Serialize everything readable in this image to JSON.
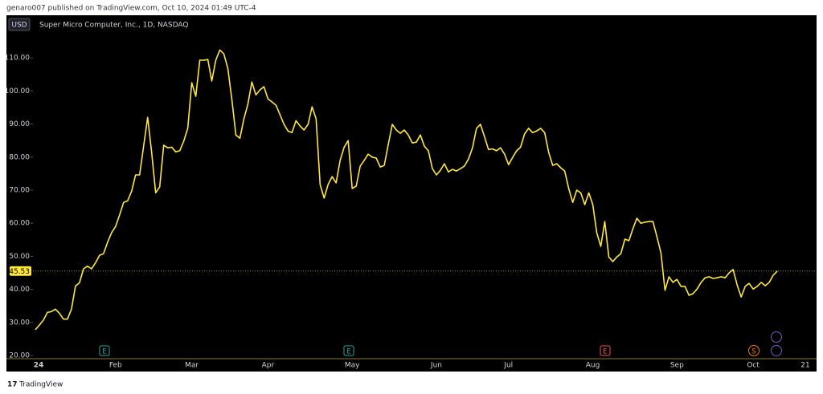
{
  "header": "genaro007 published on TradingView.com, Oct 10, 2024 01:49 UTC-4",
  "footer": "TradingView",
  "chart_data": {
    "type": "line",
    "title": "Super Micro Computer, Inc., 1D, NASDAQ",
    "currency": "USD",
    "markers": [
      "E",
      "E",
      "E",
      "S"
    ],
    "categories": [
      "24",
      null,
      null,
      null,
      null,
      null,
      null,
      null,
      null,
      null,
      null,
      null,
      null,
      null,
      null,
      null,
      null,
      null,
      null,
      null,
      "Feb",
      null,
      null,
      null,
      null,
      null,
      null,
      null,
      null,
      null,
      null,
      null,
      null,
      null,
      null,
      null,
      null,
      null,
      null,
      "Mar",
      null,
      null,
      null,
      null,
      null,
      null,
      null,
      null,
      null,
      null,
      null,
      null,
      null,
      null,
      null,
      null,
      null,
      null,
      "Apr",
      null,
      null,
      null,
      null,
      null,
      null,
      null,
      null,
      null,
      null,
      null,
      null,
      null,
      null,
      null,
      null,
      null,
      null,
      null,
      null,
      "May",
      null,
      null,
      null,
      null,
      null,
      null,
      null,
      null,
      null,
      null,
      null,
      null,
      null,
      null,
      null,
      null,
      null,
      null,
      null,
      null,
      "Jun",
      null,
      null,
      null,
      null,
      null,
      null,
      null,
      null,
      null,
      null,
      null,
      null,
      null,
      null,
      null,
      null,
      null,
      "Jul",
      null,
      null,
      null,
      null,
      null,
      null,
      null,
      null,
      null,
      null,
      null,
      null,
      null,
      null,
      null,
      null,
      null,
      null,
      null,
      null,
      "Aug",
      null,
      null,
      null,
      null,
      null,
      null,
      null,
      null,
      null,
      null,
      null,
      null,
      null,
      null,
      null,
      null,
      null,
      null,
      null,
      null,
      "Sep",
      null,
      null,
      null,
      null,
      null,
      null,
      null,
      null,
      null,
      null,
      null,
      null,
      null,
      null,
      null,
      null,
      null,
      null,
      "Oct",
      null,
      null,
      null,
      null,
      null,
      null,
      null,
      null,
      null,
      null,
      null,
      null,
      "21"
    ],
    "series": [
      {
        "name": "Super Micro Computer, Inc.",
        "color": "#ffe83a",
        "values": [
          27.8,
          29.2,
          30.7,
          33,
          33.3,
          34,
          32.8,
          31,
          31,
          34,
          41,
          42,
          46.2,
          47,
          46.2,
          48,
          50.3,
          50.8,
          54.2,
          57.1,
          59,
          62.5,
          66.3,
          66.8,
          69.7,
          74.6,
          74.6,
          83.3,
          92,
          81.4,
          69.2,
          71,
          83.6,
          82.8,
          83,
          81.6,
          81.9,
          84.8,
          88.7,
          102.5,
          98.4,
          109.3,
          109.3,
          109.5,
          103,
          109.3,
          112.4,
          111.2,
          106.8,
          97.4,
          86.7,
          85.7,
          91.6,
          96,
          102.7,
          98.8,
          100.3,
          101.3,
          97.6,
          96.7,
          95.7,
          92.8,
          89.9,
          87.9,
          87.4,
          91,
          89.4,
          88.2,
          89.9,
          95.2,
          91.6,
          71.7,
          67.6,
          71.7,
          74.1,
          72.2,
          79,
          83,
          85,
          70.5,
          71.2,
          77.3,
          79,
          80.9,
          80,
          79.7,
          77,
          77.5,
          83.8,
          89.9,
          88.2,
          87.2,
          88.2,
          86.7,
          84.3,
          84.5,
          86.7,
          83.3,
          81.9,
          76.5,
          74.6,
          76,
          78,
          75.5,
          76.3,
          75.8,
          76.5,
          77.3,
          79.4,
          82.8,
          88.7,
          89.9,
          86.2,
          82.3,
          82.5,
          81.9,
          82.8,
          80.9,
          77.7,
          79.9,
          81.9,
          83,
          87,
          88.7,
          87.4,
          87.9,
          88.7,
          87.4,
          81.4,
          77.5,
          78,
          76.8,
          75.8,
          70.5,
          66.3,
          70,
          69.2,
          65.6,
          69.2,
          65.6,
          57.1,
          53,
          60.5,
          49.8,
          48.4,
          49.8,
          50.8,
          55.2,
          54.7,
          58.3,
          61.5,
          60,
          60.3,
          60.5,
          60.5,
          55.9,
          51,
          39.7,
          43.8,
          42.1,
          43,
          40.9,
          40.9,
          38.2,
          38.7,
          40.1,
          42.1,
          43.5,
          43.8,
          43.3,
          43.5,
          43.8,
          43.5,
          45,
          46,
          41.3,
          37.7,
          40.9,
          41.8,
          40.1,
          40.9,
          42.1,
          41.1,
          42.1,
          44.3,
          45.53,
          null,
          null,
          null,
          null,
          null,
          null,
          null
        ]
      }
    ],
    "ylim": [
      19.03,
      122.9
    ],
    "yticks": [
      {
        "value": 20,
        "label": "20.00"
      },
      {
        "value": 30,
        "label": "30.00"
      },
      {
        "value": 40,
        "label": "40.00"
      },
      {
        "value": 50,
        "label": "50.00"
      },
      {
        "value": 60,
        "label": "60.00"
      },
      {
        "value": 70,
        "label": "70.00"
      },
      {
        "value": 80,
        "label": "80.00"
      },
      {
        "value": 90,
        "label": "90.00"
      },
      {
        "value": 100,
        "label": "100.00"
      },
      {
        "value": 110,
        "label": "110.00"
      }
    ],
    "grid": false
  }
}
